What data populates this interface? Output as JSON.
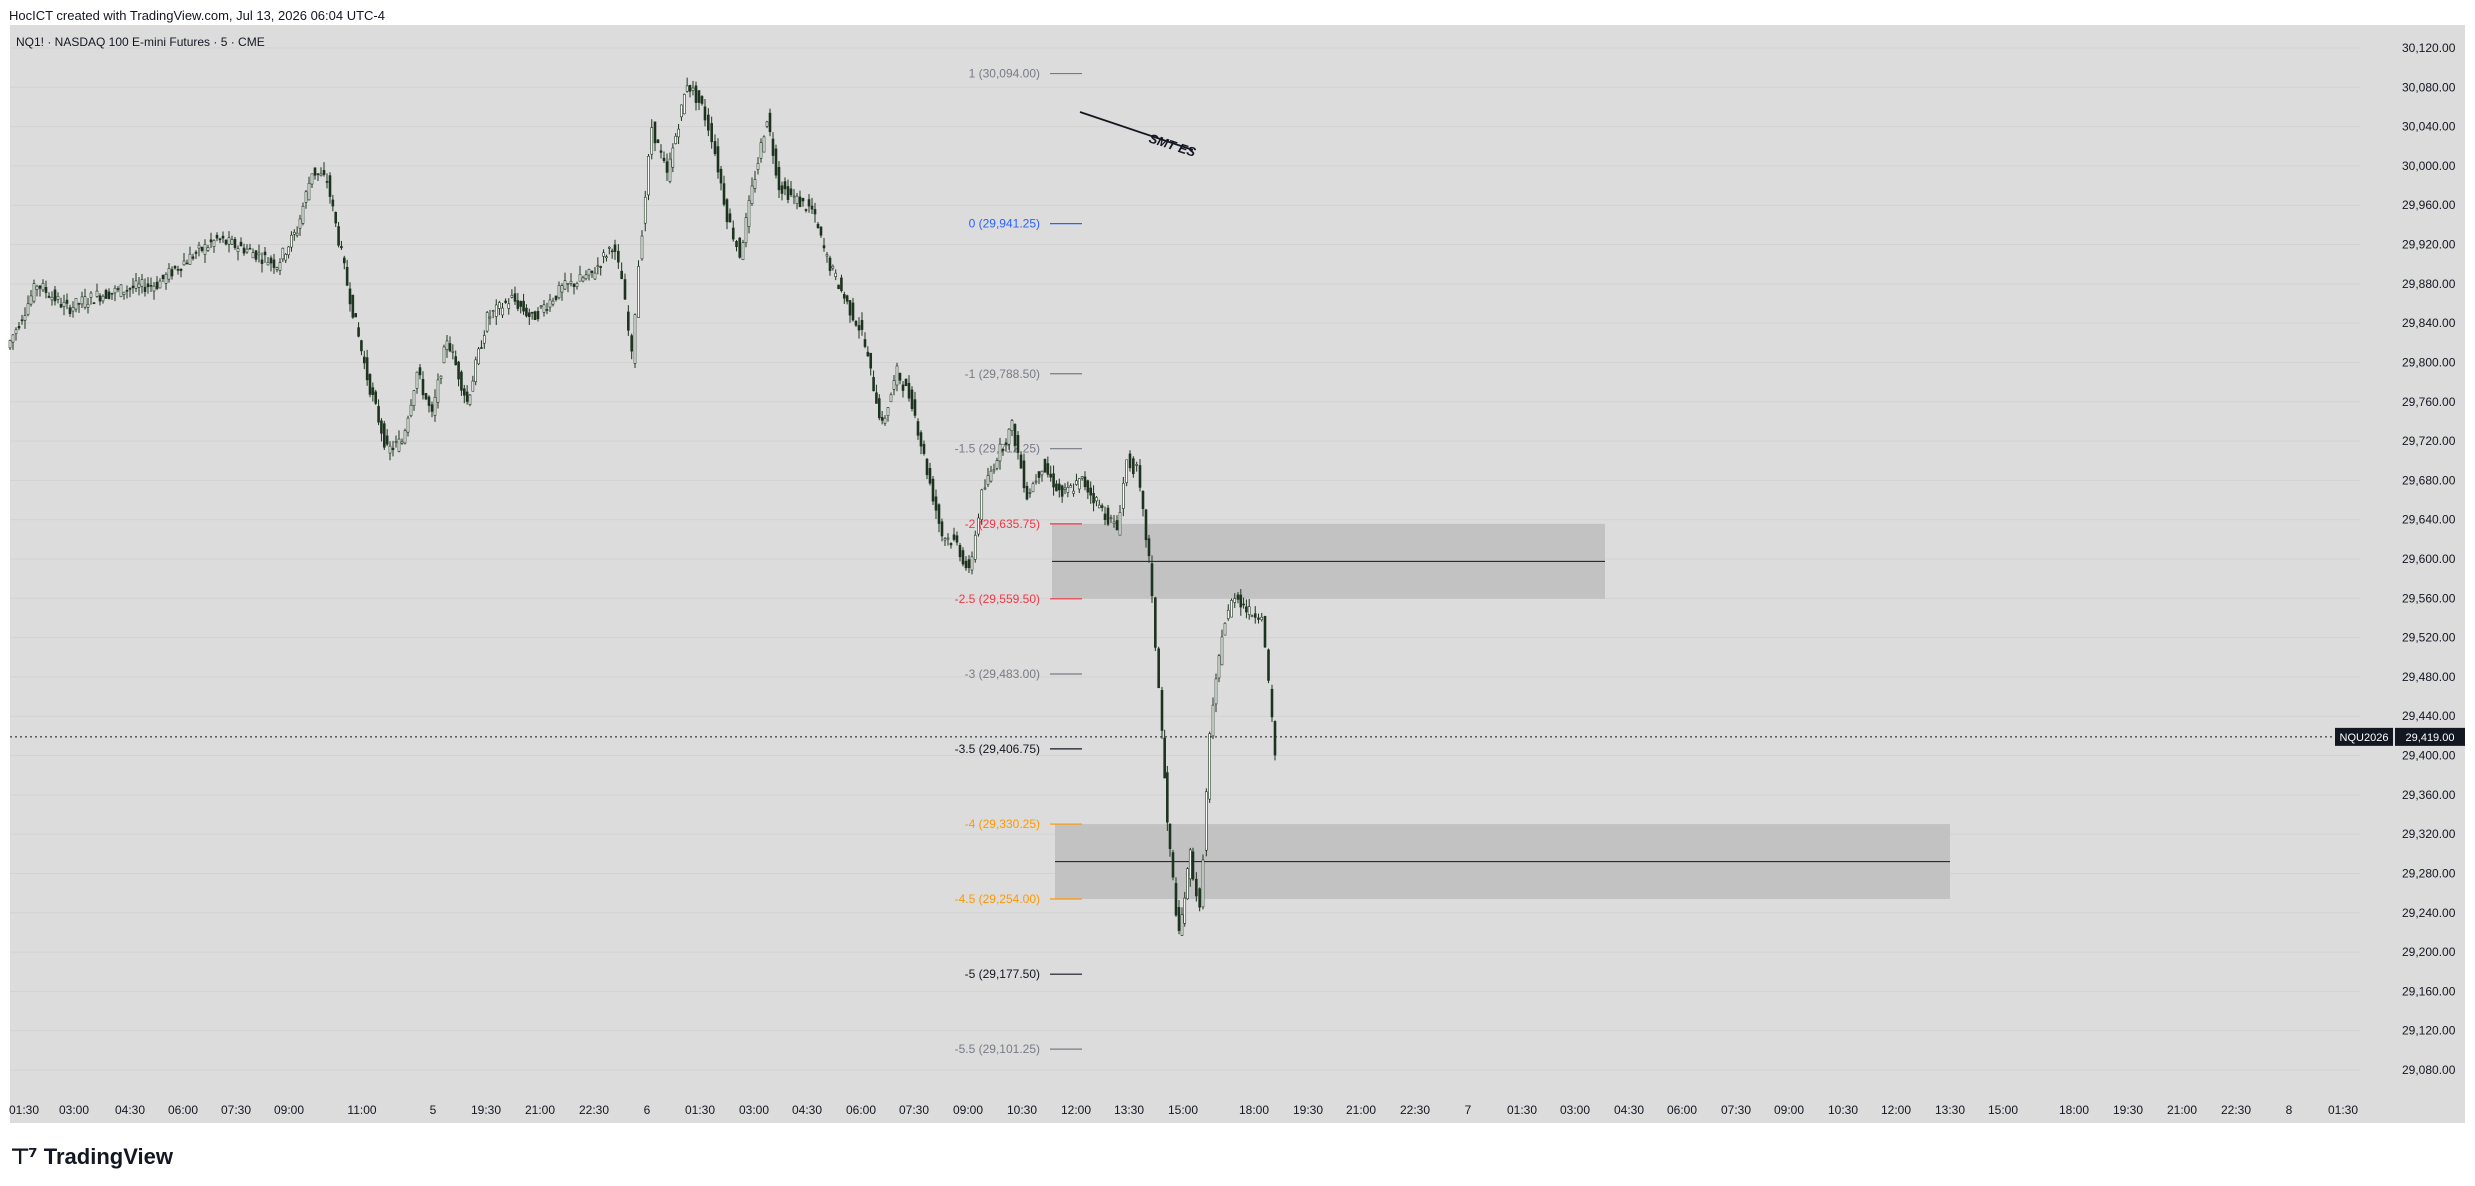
{
  "header": {
    "caption": "HocICT created with TradingView.com, Jul 13, 2026 06:04 UTC-4"
  },
  "symbol": {
    "title": "NQ1! · NASDAQ 100 E-mini Futures · 5 · CME"
  },
  "brand": {
    "mark_icon": "tradingview-logo-icon",
    "name": "TradingView"
  },
  "colors": {
    "background": "#dcdcdc",
    "candle": "#1f3320",
    "grid": "#d0d0d0",
    "fib_gray": "#787b86",
    "fib_blue": "#2962ff",
    "fib_red": "#f23645",
    "fib_orange": "#ff9800",
    "fib_black": "#131722",
    "zone": "#c2c2c2"
  },
  "chart_data": {
    "type": "candlestick",
    "symbol": "NQ1!",
    "interval": "5",
    "ylim": [
      29040,
      30140
    ],
    "y_ticks": [
      "30,120.00",
      "30,080.00",
      "30,040.00",
      "30,000.00",
      "29,960.00",
      "29,920.00",
      "29,880.00",
      "29,840.00",
      "29,800.00",
      "29,760.00",
      "29,720.00",
      "29,680.00",
      "29,640.00",
      "29,600.00",
      "29,560.00",
      "29,520.00",
      "29,480.00",
      "29,440.00",
      "29,400.00",
      "29,360.00",
      "29,320.00",
      "29,280.00",
      "29,240.00",
      "29,200.00",
      "29,160.00",
      "29,120.00",
      "29,080.00"
    ],
    "x_ticks": [
      "01:30",
      "03:00",
      "04:30",
      "06:00",
      "07:30",
      "09:00",
      "11:00",
      "5",
      "19:30",
      "21:00",
      "22:30",
      "6",
      "01:30",
      "03:00",
      "04:30",
      "06:00",
      "07:30",
      "09:00",
      "10:30",
      "12:00",
      "13:30",
      "15:00",
      "18:00",
      "19:30",
      "21:00",
      "22:30",
      "7",
      "01:30",
      "03:00",
      "04:30",
      "06:00",
      "07:30",
      "09:00",
      "10:30",
      "12:00",
      "13:30",
      "15:00",
      "18:00",
      "19:30",
      "21:00",
      "22:30",
      "8",
      "01:30"
    ],
    "price_path": [
      [
        0,
        29815
      ],
      [
        30,
        29880
      ],
      [
        60,
        29855
      ],
      [
        90,
        29868
      ],
      [
        120,
        29875
      ],
      [
        150,
        29880
      ],
      [
        180,
        29905
      ],
      [
        210,
        29925
      ],
      [
        240,
        29915
      ],
      [
        270,
        29900
      ],
      [
        290,
        29935
      ],
      [
        305,
        29995
      ],
      [
        320,
        29985
      ],
      [
        340,
        29880
      ],
      [
        360,
        29785
      ],
      [
        380,
        29710
      ],
      [
        395,
        29720
      ],
      [
        410,
        29790
      ],
      [
        425,
        29745
      ],
      [
        440,
        29825
      ],
      [
        460,
        29760
      ],
      [
        480,
        29845
      ],
      [
        505,
        29865
      ],
      [
        525,
        29845
      ],
      [
        555,
        29875
      ],
      [
        585,
        29890
      ],
      [
        605,
        29920
      ],
      [
        615,
        29885
      ],
      [
        625,
        29805
      ],
      [
        632,
        29900
      ],
      [
        645,
        30040
      ],
      [
        660,
        29990
      ],
      [
        680,
        30085
      ],
      [
        695,
        30060
      ],
      [
        705,
        30030
      ],
      [
        720,
        29950
      ],
      [
        733,
        29910
      ],
      [
        745,
        29975
      ],
      [
        760,
        30050
      ],
      [
        772,
        29980
      ],
      [
        790,
        29965
      ],
      [
        805,
        29955
      ],
      [
        820,
        29905
      ],
      [
        840,
        29860
      ],
      [
        855,
        29830
      ],
      [
        875,
        29735
      ],
      [
        890,
        29790
      ],
      [
        905,
        29760
      ],
      [
        920,
        29690
      ],
      [
        935,
        29625
      ],
      [
        950,
        29615
      ],
      [
        962,
        29585
      ],
      [
        975,
        29665
      ],
      [
        990,
        29705
      ],
      [
        1005,
        29735
      ],
      [
        1020,
        29665
      ],
      [
        1035,
        29695
      ],
      [
        1055,
        29665
      ],
      [
        1075,
        29680
      ],
      [
        1095,
        29650
      ],
      [
        1110,
        29630
      ],
      [
        1120,
        29700
      ],
      [
        1130,
        29690
      ],
      [
        1142,
        29600
      ],
      [
        1152,
        29470
      ],
      [
        1160,
        29330
      ],
      [
        1172,
        29215
      ],
      [
        1183,
        29300
      ],
      [
        1193,
        29240
      ],
      [
        1203,
        29420
      ],
      [
        1215,
        29525
      ],
      [
        1228,
        29565
      ],
      [
        1242,
        29545
      ],
      [
        1255,
        29545
      ],
      [
        1262,
        29470
      ],
      [
        1268,
        29400
      ]
    ],
    "fibonacci": [
      {
        "label": "1 (30,094.00)",
        "price": 30094.0,
        "color": "#787b86"
      },
      {
        "label": "0 (29,941.25)",
        "price": 29941.25,
        "color": "#2962ff"
      },
      {
        "label": "-1 (29,788.50)",
        "price": 29788.5,
        "color": "#787b86"
      },
      {
        "label": "-1.5 (29,712.25)",
        "price": 29712.25,
        "color": "#787b86"
      },
      {
        "label": "-2 (29,635.75)",
        "price": 29635.75,
        "color": "#f23645"
      },
      {
        "label": "-2.5 (29,559.50)",
        "price": 29559.5,
        "color": "#f23645"
      },
      {
        "label": "-3 (29,483.00)",
        "price": 29483.0,
        "color": "#787b86"
      },
      {
        "label": "-3.5 (29,406.75)",
        "price": 29406.75,
        "color": "#131722"
      },
      {
        "label": "-4 (29,330.25)",
        "price": 29330.25,
        "color": "#ff9800"
      },
      {
        "label": "-4.5 (29,254.00)",
        "price": 29254.0,
        "color": "#ff9800"
      },
      {
        "label": "-5 (29,177.50)",
        "price": 29177.5,
        "color": "#131722"
      },
      {
        "label": "-5.5 (29,101.25)",
        "price": 29101.25,
        "color": "#787b86"
      }
    ],
    "zones": [
      {
        "top": 29635.75,
        "bottom": 29559.5,
        "midline": 29597.6
      },
      {
        "top": 29330.25,
        "bottom": 29254.0,
        "midline": 29292.1
      }
    ],
    "annotation": {
      "text": "SMT ES"
    },
    "last_price": {
      "ticker": "NQU2026",
      "value": "29,419.00",
      "price": 29419.0
    }
  }
}
